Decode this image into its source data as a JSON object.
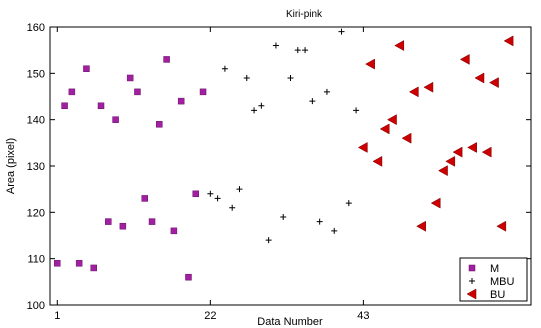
{
  "chart_data": {
    "type": "scatter",
    "title": "Kiri-pink",
    "xlabel": "Data Number",
    "ylabel": "Area (pixel)",
    "xlim": [
      0,
      66
    ],
    "ylim": [
      100,
      160
    ],
    "xticks": [
      1,
      22,
      43
    ],
    "yticks": [
      100,
      110,
      120,
      130,
      140,
      150,
      160
    ],
    "grid": false,
    "legend_position": "bottom-right",
    "series": [
      {
        "name": "M",
        "marker": "square",
        "color": "#a020a0",
        "x": [
          1,
          2,
          3,
          4,
          5,
          6,
          7,
          8,
          9,
          10,
          11,
          12,
          13,
          14,
          15,
          16,
          17,
          18,
          19,
          20,
          21
        ],
        "y": [
          109,
          143,
          146,
          109,
          151,
          108,
          143,
          118,
          140,
          117,
          149,
          146,
          123,
          118,
          139,
          153,
          116,
          144,
          106,
          124,
          146
        ]
      },
      {
        "name": "MBU",
        "marker": "plus",
        "color": "#000000",
        "x": [
          22,
          23,
          24,
          25,
          26,
          27,
          28,
          29,
          30,
          31,
          32,
          33,
          34,
          35,
          36,
          37,
          38,
          39,
          40,
          41,
          42
        ],
        "y": [
          124,
          123,
          151,
          121,
          125,
          149,
          142,
          143,
          114,
          156,
          119,
          149,
          155,
          155,
          144,
          118,
          146,
          116,
          159,
          122,
          142
        ]
      },
      {
        "name": "BU",
        "marker": "triangle-left",
        "color": "#cc0000",
        "x": [
          43,
          44,
          45,
          46,
          47,
          48,
          49,
          50,
          51,
          52,
          53,
          54,
          55,
          56,
          57,
          58,
          59,
          60,
          61,
          62,
          63
        ],
        "y": [
          134,
          152,
          131,
          138,
          140,
          156,
          136,
          146,
          117,
          147,
          122,
          129,
          131,
          133,
          153,
          134,
          149,
          133,
          148,
          117,
          157
        ]
      }
    ]
  }
}
